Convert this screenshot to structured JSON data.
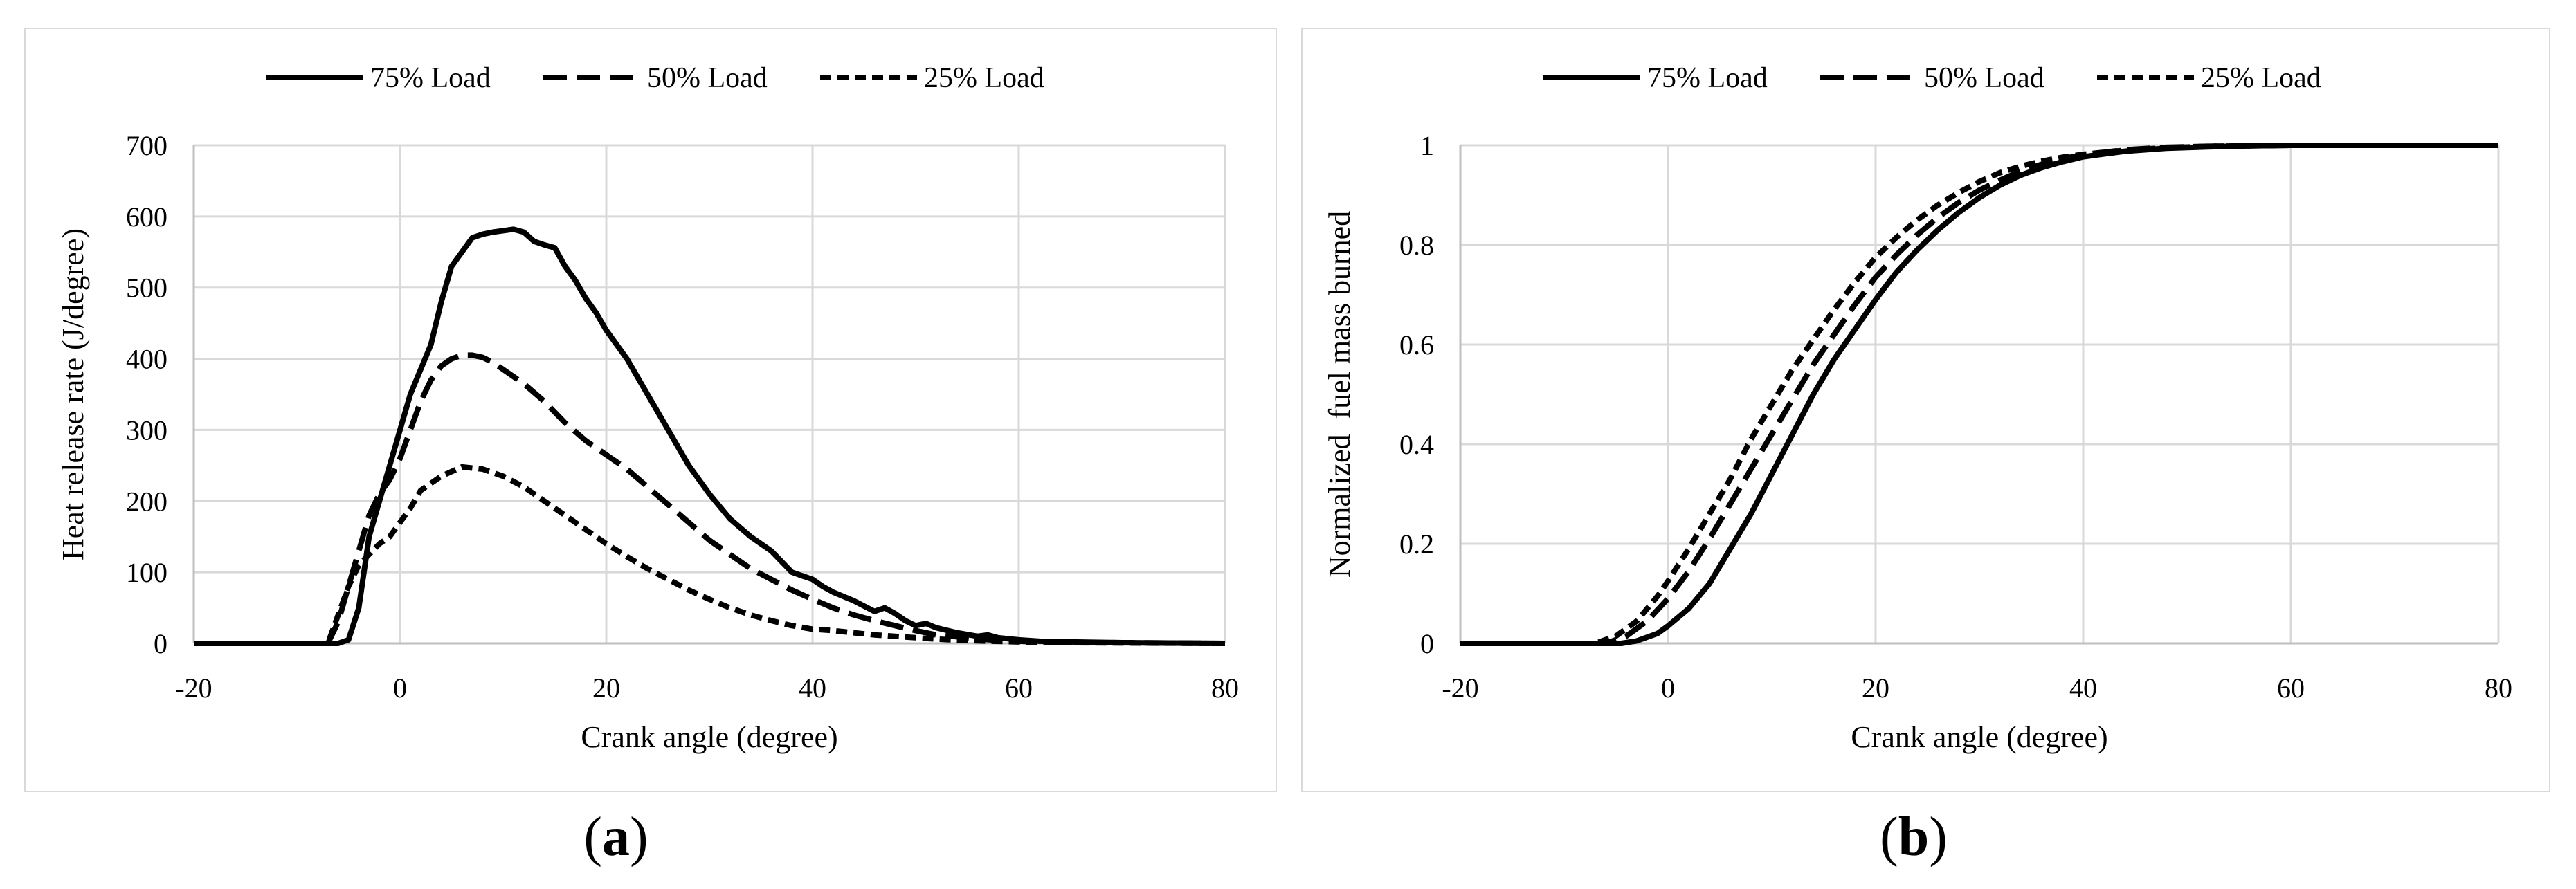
{
  "chart_data": [
    {
      "type": "line",
      "panel_label": "a",
      "xlabel": "Crank angle (degree)",
      "ylabel": "Heat release rate (J/degree)",
      "xlim": [
        -20,
        80
      ],
      "ylim": [
        0,
        700
      ],
      "xticks": [
        "-20",
        "0",
        "20",
        "40",
        "60",
        "80"
      ],
      "yticks": [
        "0",
        "100",
        "200",
        "300",
        "400",
        "500",
        "600",
        "700"
      ],
      "grid": true,
      "legend": "top-center",
      "series": [
        {
          "name": "75% Load",
          "dash": "solid",
          "x": [
            -20,
            -6,
            -5,
            -4,
            -3,
            -2,
            -1,
            0,
            1,
            2,
            3,
            4,
            5,
            6,
            7,
            8,
            9,
            10,
            11,
            12,
            13,
            14,
            15,
            16,
            17,
            18,
            19,
            20,
            22,
            24,
            26,
            28,
            30,
            32,
            34,
            36,
            37,
            38,
            39,
            40,
            41,
            42,
            44,
            46,
            47,
            48,
            49,
            50,
            51,
            52,
            54,
            56,
            57,
            58,
            60,
            62,
            65,
            70,
            80
          ],
          "y": [
            0,
            0,
            5,
            50,
            150,
            200,
            250,
            300,
            350,
            385,
            420,
            480,
            530,
            550,
            570,
            575,
            578,
            580,
            582,
            578,
            565,
            560,
            556,
            530,
            510,
            485,
            465,
            440,
            400,
            350,
            300,
            250,
            210,
            175,
            150,
            130,
            115,
            100,
            95,
            90,
            80,
            72,
            60,
            45,
            50,
            42,
            32,
            25,
            28,
            22,
            15,
            10,
            12,
            8,
            5,
            3,
            2,
            1,
            0
          ]
        },
        {
          "name": "50% Load",
          "dash": "long-dash",
          "x": [
            -20,
            -7,
            -6,
            -5,
            -4,
            -3,
            -2,
            -1,
            0,
            1,
            2,
            3,
            4,
            5,
            6,
            7,
            8,
            9,
            10,
            12,
            14,
            16,
            18,
            20,
            22,
            24,
            26,
            28,
            30,
            32,
            34,
            36,
            38,
            40,
            42,
            44,
            46,
            48,
            50,
            52,
            55,
            58,
            62,
            70,
            80
          ],
          "y": [
            0,
            0,
            30,
            80,
            130,
            180,
            210,
            230,
            260,
            300,
            340,
            370,
            390,
            400,
            405,
            405,
            402,
            395,
            385,
            365,
            340,
            310,
            285,
            265,
            245,
            220,
            195,
            170,
            145,
            125,
            105,
            90,
            75,
            62,
            50,
            40,
            32,
            25,
            18,
            12,
            8,
            4,
            2,
            1,
            0
          ]
        },
        {
          "name": "25% Load",
          "dash": "short-dash",
          "x": [
            -20,
            -7,
            -6,
            -5,
            -4,
            -3,
            -2,
            -1,
            0,
            1,
            2,
            4,
            6,
            8,
            10,
            12,
            14,
            16,
            18,
            20,
            22,
            24,
            26,
            28,
            30,
            32,
            34,
            36,
            38,
            40,
            42,
            44,
            46,
            48,
            50,
            52,
            55,
            60,
            65,
            80
          ],
          "y": [
            0,
            0,
            40,
            80,
            110,
            125,
            140,
            150,
            170,
            190,
            215,
            235,
            248,
            245,
            235,
            220,
            200,
            180,
            160,
            140,
            122,
            105,
            90,
            75,
            62,
            50,
            40,
            32,
            25,
            20,
            18,
            15,
            12,
            10,
            8,
            6,
            4,
            2,
            1,
            0
          ]
        }
      ]
    },
    {
      "type": "line",
      "panel_label": "b",
      "xlabel": "Crank angle (degree)",
      "ylabel": "Normalized  fuel mass burned",
      "xlim": [
        -20,
        80
      ],
      "ylim": [
        0,
        1
      ],
      "xticks": [
        "-20",
        "0",
        "20",
        "40",
        "60",
        "80"
      ],
      "yticks": [
        "0",
        "0.2",
        "0.4",
        "0.6",
        "0.8",
        "1"
      ],
      "grid": true,
      "legend": "top-center",
      "series": [
        {
          "name": "75% Load",
          "dash": "solid",
          "x": [
            -20,
            -4.5,
            -3,
            -1,
            0,
            2,
            4,
            6,
            8,
            10,
            12,
            14,
            16,
            18,
            20,
            22,
            24,
            26,
            28,
            30,
            32,
            34,
            36,
            38,
            40,
            44,
            48,
            52,
            56,
            60,
            70,
            80
          ],
          "y": [
            0,
            0,
            0.005,
            0.02,
            0.035,
            0.07,
            0.12,
            0.19,
            0.26,
            0.34,
            0.42,
            0.5,
            0.57,
            0.63,
            0.69,
            0.745,
            0.79,
            0.83,
            0.865,
            0.895,
            0.92,
            0.94,
            0.955,
            0.967,
            0.977,
            0.988,
            0.994,
            0.997,
            0.999,
            1,
            1,
            1
          ]
        },
        {
          "name": "50% Load",
          "dash": "long-dash",
          "x": [
            -20,
            -6,
            -4,
            -2,
            0,
            2,
            4,
            6,
            8,
            10,
            12,
            14,
            16,
            18,
            20,
            22,
            24,
            26,
            28,
            30,
            32,
            34,
            36,
            38,
            40,
            44,
            48,
            52,
            56,
            60,
            70,
            80
          ],
          "y": [
            0,
            0,
            0.015,
            0.045,
            0.09,
            0.145,
            0.21,
            0.28,
            0.35,
            0.42,
            0.49,
            0.56,
            0.62,
            0.68,
            0.735,
            0.78,
            0.82,
            0.855,
            0.885,
            0.91,
            0.93,
            0.948,
            0.962,
            0.973,
            0.981,
            0.991,
            0.996,
            0.998,
            0.999,
            1,
            1,
            1
          ]
        },
        {
          "name": "25% Load",
          "dash": "short-dash",
          "x": [
            -20,
            -7,
            -5,
            -3,
            -1,
            0,
            2,
            4,
            6,
            8,
            10,
            12,
            14,
            16,
            18,
            20,
            22,
            24,
            26,
            28,
            30,
            32,
            34,
            36,
            38,
            40,
            44,
            48,
            52,
            56,
            60,
            70,
            80
          ],
          "y": [
            0,
            0,
            0.015,
            0.045,
            0.095,
            0.125,
            0.19,
            0.26,
            0.33,
            0.41,
            0.48,
            0.55,
            0.61,
            0.67,
            0.725,
            0.775,
            0.815,
            0.85,
            0.88,
            0.905,
            0.927,
            0.945,
            0.958,
            0.968,
            0.976,
            0.982,
            0.99,
            0.995,
            0.998,
            0.999,
            1,
            1,
            1
          ]
        }
      ]
    }
  ],
  "colors": {
    "line": "#000000",
    "grid": "#d9d9d9",
    "axis": "#bfbfbf",
    "border": "#d9d9d9"
  }
}
